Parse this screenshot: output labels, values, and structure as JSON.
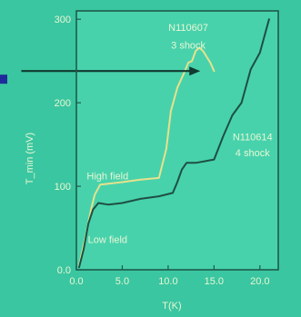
{
  "colors": {
    "background": "#3ac6a0",
    "plot_background": "#47d2ac",
    "axis": "#1f5b4a",
    "grid": "#62ddb8",
    "text": "#e9f6d4",
    "high_field_line": "#e8e18c",
    "low_field_line": "#1f4f42",
    "arrow": "#123a2f",
    "marker": "#1f2b9a"
  },
  "chart_data": {
    "type": "line",
    "title": "",
    "xlabel": "T(K)",
    "ylabel": "T_min (mV)",
    "xlim": [
      0,
      22
    ],
    "ylim": [
      0,
      310
    ],
    "x_ticks": [
      "0.0",
      "5.0",
      "10.0",
      "15.0",
      "20.0"
    ],
    "y_ticks": [
      "0.0",
      "100",
      "200",
      "300"
    ],
    "annotations": [
      {
        "id": "label-high-field",
        "text": "High field",
        "x": 3.4,
        "y": 108
      },
      {
        "id": "label-low-field",
        "text": "Low field",
        "x": 3.4,
        "y": 32
      },
      {
        "id": "label-sample-top-1",
        "text": "N110607",
        "x": 12.2,
        "y": 286
      },
      {
        "id": "label-sample-top-2",
        "text": "3 shock",
        "x": 12.2,
        "y": 265
      },
      {
        "id": "label-sample-right-1",
        "text": "N110614",
        "x": 19.2,
        "y": 155
      },
      {
        "id": "label-sample-right-2",
        "text": "4 shock",
        "x": 19.2,
        "y": 136
      }
    ],
    "arrow": {
      "from_x": -6,
      "to_x": 13.5,
      "y": 238
    },
    "grid": false,
    "legend": "none",
    "series": [
      {
        "x": [
          0.3,
          1.0,
          1.6,
          2.0,
          2.6,
          3.5,
          5,
          7,
          9,
          9.8,
          10.3,
          11,
          11.7,
          12.2,
          12.6,
          13.0,
          13.4,
          13.8,
          14.2,
          14.6,
          15.0
        ],
        "values": [
          5,
          40,
          72,
          90,
          102,
          103,
          105,
          108,
          110,
          145,
          190,
          218,
          235,
          248,
          250,
          262,
          266,
          262,
          255,
          248,
          238
        ]
      },
      {
        "x": [
          0.3,
          0.8,
          1.3,
          1.8,
          2.4,
          3.5,
          5,
          7,
          9,
          10.5,
          11,
          11.5,
          12,
          13,
          14,
          15,
          16,
          17,
          18,
          19,
          20,
          21
        ],
        "values": [
          3,
          25,
          55,
          72,
          80,
          78,
          80,
          85,
          88,
          92,
          105,
          120,
          128,
          128,
          130,
          132,
          160,
          185,
          200,
          240,
          260,
          300
        ]
      }
    ]
  }
}
